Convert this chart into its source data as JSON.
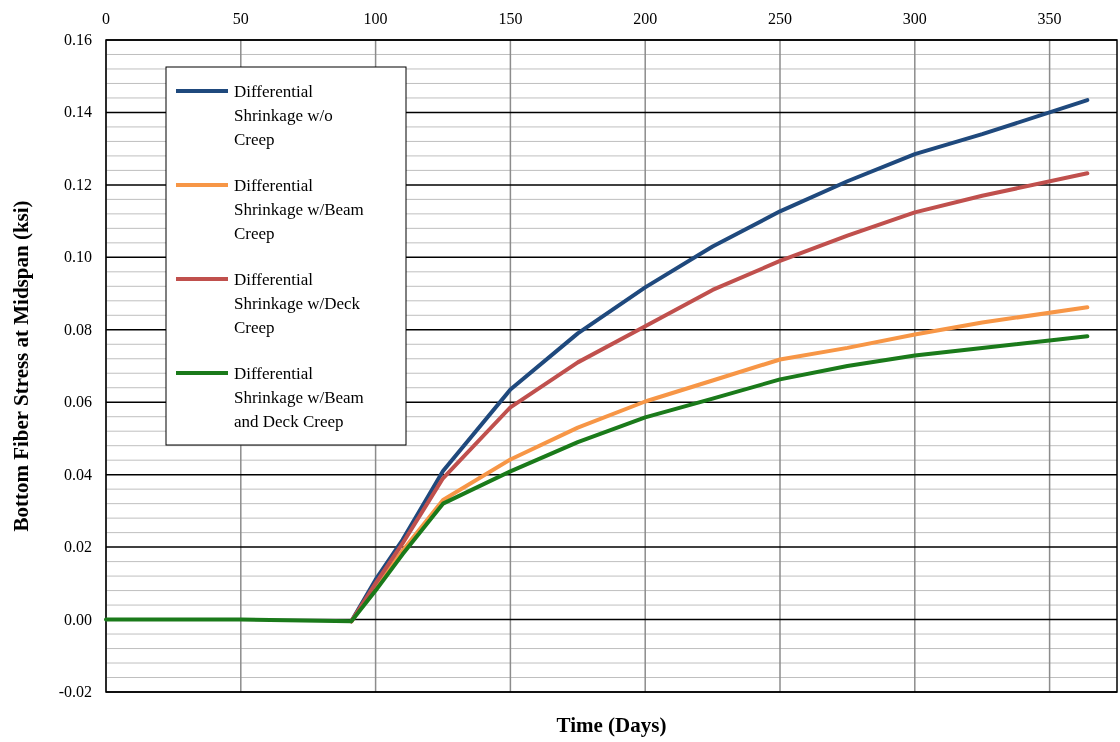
{
  "chart_data": {
    "type": "line",
    "xlabel": "Time (Days)",
    "ylabel": "Bottom Fiber Stress at Midspan (ksi)",
    "x": [
      0,
      50,
      91,
      100,
      110,
      125,
      150,
      175,
      200,
      225,
      250,
      275,
      300,
      325,
      364
    ],
    "xlim": [
      0,
      375
    ],
    "xticks": [
      0,
      50,
      100,
      150,
      200,
      250,
      300,
      350
    ],
    "ylim": [
      -0.02,
      0.16
    ],
    "yticks": [
      {
        "value": -0.02,
        "label": "-0.02"
      },
      {
        "value": 0,
        "label": "0.00"
      },
      {
        "value": 0.02,
        "label": "0.02"
      },
      {
        "value": 0.04,
        "label": "0.04"
      },
      {
        "value": 0.06,
        "label": "0.06"
      },
      {
        "value": 0.08,
        "label": "0.08"
      },
      {
        "value": 0.1,
        "label": "0.10"
      },
      {
        "value": 0.12,
        "label": "0.12"
      },
      {
        "value": 0.14,
        "label": "0.14"
      },
      {
        "value": 0.16,
        "label": "0.16"
      }
    ],
    "grid": true,
    "legend": "top left",
    "marker": "none",
    "line_style": "solid",
    "series": [
      {
        "name": "Differential Shrinkage w/o Creep",
        "color": "#1f497d",
        "values": [
          null,
          null,
          -0.0005,
          0.011,
          0.022,
          0.041,
          0.0635,
          0.079,
          0.0917,
          0.103,
          0.1127,
          0.121,
          0.1285,
          0.134,
          0.1434
        ]
      },
      {
        "name": "Differential Shrinkage w/Beam Creep",
        "color": "#f79646",
        "values": [
          null,
          null,
          -0.0005,
          0.009,
          0.019,
          0.033,
          0.0442,
          0.053,
          0.0602,
          0.066,
          0.0718,
          0.075,
          0.0787,
          0.082,
          0.0862
        ]
      },
      {
        "name": "Differential Shrinkage w/Deck Creep",
        "color": "#c0504d",
        "values": [
          null,
          null,
          -0.0005,
          0.01,
          0.021,
          0.039,
          0.0586,
          0.071,
          0.081,
          0.091,
          0.099,
          0.106,
          0.1124,
          0.117,
          0.1232
        ]
      },
      {
        "name": "Differential Shrinkage w/Beam and Deck Creep",
        "color": "#1a7a1a",
        "values": [
          0,
          0,
          -0.0005,
          0.008,
          0.018,
          0.032,
          0.0409,
          0.049,
          0.0558,
          0.061,
          0.0663,
          0.07,
          0.0729,
          0.075,
          0.0782
        ]
      }
    ]
  }
}
